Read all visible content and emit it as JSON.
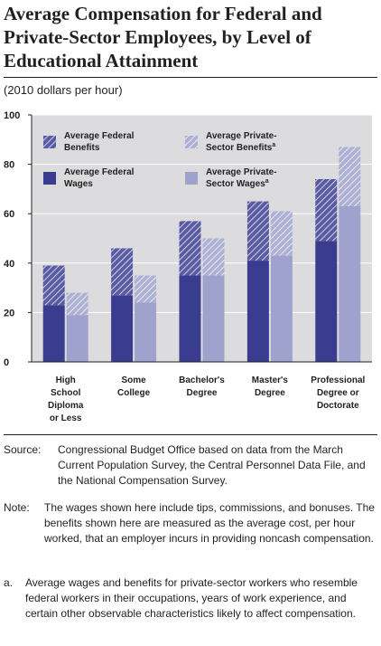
{
  "title": "Average Compensation for Federal and Private-Sector Employees, by Level of Educational Attainment",
  "subtitle": "(2010 dollars per hour)",
  "colors": {
    "federal": "#3a3c8f",
    "private": "#9ea2cc",
    "plot_bg": "#dcdcde"
  },
  "chart_data": {
    "type": "bar",
    "stacked": true,
    "grid": true,
    "ylim": [
      0,
      100
    ],
    "yticks": [
      "0",
      "20",
      "40",
      "60",
      "80",
      "100"
    ],
    "categories": [
      [
        "High",
        "School",
        "Diploma",
        "or Less"
      ],
      [
        "Some",
        "College"
      ],
      [
        "Bachelor's",
        "Degree"
      ],
      [
        "Master's",
        "Degree"
      ],
      [
        "Professional",
        "Degree or",
        "Doctorate"
      ]
    ],
    "series": [
      {
        "name": "Average Federal Wages",
        "group": "federal",
        "part": "wages",
        "values": [
          23,
          27,
          35,
          41,
          49
        ]
      },
      {
        "name": "Average Federal Benefits",
        "group": "federal",
        "part": "benefits",
        "values": [
          16,
          19,
          22,
          24,
          25
        ]
      },
      {
        "name": "Average Private-Sector Wages",
        "name_sup": "a",
        "group": "private",
        "part": "wages",
        "values": [
          19,
          24,
          35,
          43,
          63
        ]
      },
      {
        "name": "Average Private-Sector Benefits",
        "name_sup": "a",
        "group": "private",
        "part": "benefits",
        "values": [
          9,
          11,
          15,
          18,
          24
        ]
      }
    ],
    "legend": [
      {
        "lines": [
          "Average Federal",
          "Benefits"
        ],
        "sup": "",
        "group": "federal",
        "part": "benefits"
      },
      {
        "lines": [
          "Average Private-",
          "Sector Benefits"
        ],
        "sup": "a",
        "group": "private",
        "part": "benefits"
      },
      {
        "lines": [
          "Average Federal",
          "Wages"
        ],
        "sup": "",
        "group": "federal",
        "part": "wages"
      },
      {
        "lines": [
          "Average Private-",
          "Sector Wages"
        ],
        "sup": "a",
        "group": "private",
        "part": "wages"
      }
    ]
  },
  "notes": [
    {
      "label": "Source:",
      "text": "Congressional Budget Office based on data from the March Current Population Survey, the Central Personnel Data File, and the National Compensation Survey."
    },
    {
      "label": "Note:",
      "text": "The wages shown here include tips, commissions, and bonuses. The benefits shown here are measured as the average cost, per hour worked, that an employer incurs in providing noncash compensation."
    },
    {
      "label": "a.",
      "text": "Average wages and benefits for private-sector workers who resemble federal workers in their occupations, years of work experience, and certain other observable characteristics likely to affect compensation."
    }
  ]
}
